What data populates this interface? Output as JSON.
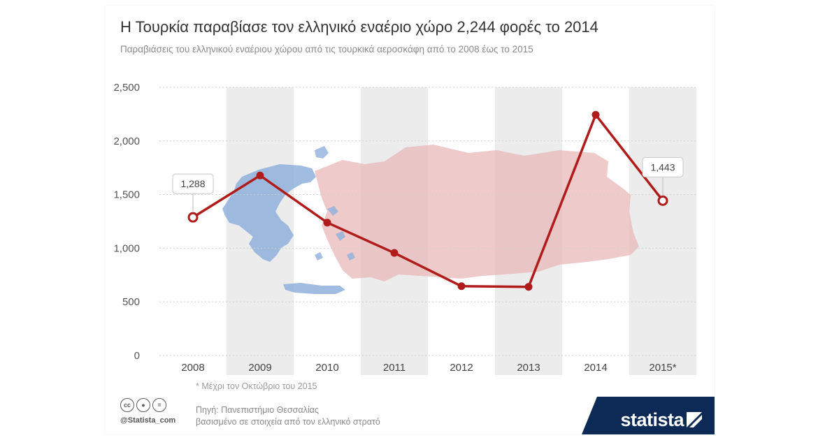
{
  "header": {
    "title": "Η Τουρκία παραβίασε τον ελληνικό εναέριο χώρο 2,244 φορές το 2014",
    "subtitle": "Παραβιάσεις του ελληνικού εναέριου χώρου από τις τουρκικά αεροσκάφη από το 2008 έως το 2015"
  },
  "chart_data": {
    "type": "line",
    "title": "Η Τουρκία παραβίασε τον ελληνικό εναέριο χώρο 2,244 φορές το 2014",
    "subtitle": "Παραβιάσεις του ελληνικού εναέριου χώρου από τις τουρκικά αεροσκάφη από το 2008 έως το 2015",
    "categories": [
      "2008",
      "2009",
      "2010",
      "2011",
      "2012",
      "2013",
      "2014",
      "2015*"
    ],
    "values": [
      1288,
      1678,
      1239,
      956,
      646,
      640,
      2244,
      1443
    ],
    "ylim": [
      0,
      2500
    ],
    "yticks": [
      0,
      500,
      1000,
      1500,
      2000,
      2500
    ],
    "ytick_labels": [
      "0",
      "500",
      "1,000",
      "1,500",
      "2,000",
      "2,500"
    ],
    "data_labels": [
      {
        "category": "2008",
        "text": "1,288"
      },
      {
        "category": "2015*",
        "text": "1,443"
      }
    ],
    "grid": true,
    "line_color": "#b01c1c",
    "background_map_colors": {
      "greece": "#8fb0dc",
      "turkey": "#e8b8b8"
    }
  },
  "footer": {
    "footnote": "* Μέχρι τον Οκτώβριο του 2015",
    "source_line1": "Πηγή: Πανεπιστήμιο Θεσσαλίας",
    "source_line2": "βασισμένο σε στοιχεία από τον ελληνικό στρατό",
    "handle": "@Statista_com",
    "brand": "statista",
    "brand_color": "#0d2a56",
    "cc_icons": [
      "creative-commons-icon",
      "attribution-icon",
      "no-derivatives-icon"
    ]
  }
}
